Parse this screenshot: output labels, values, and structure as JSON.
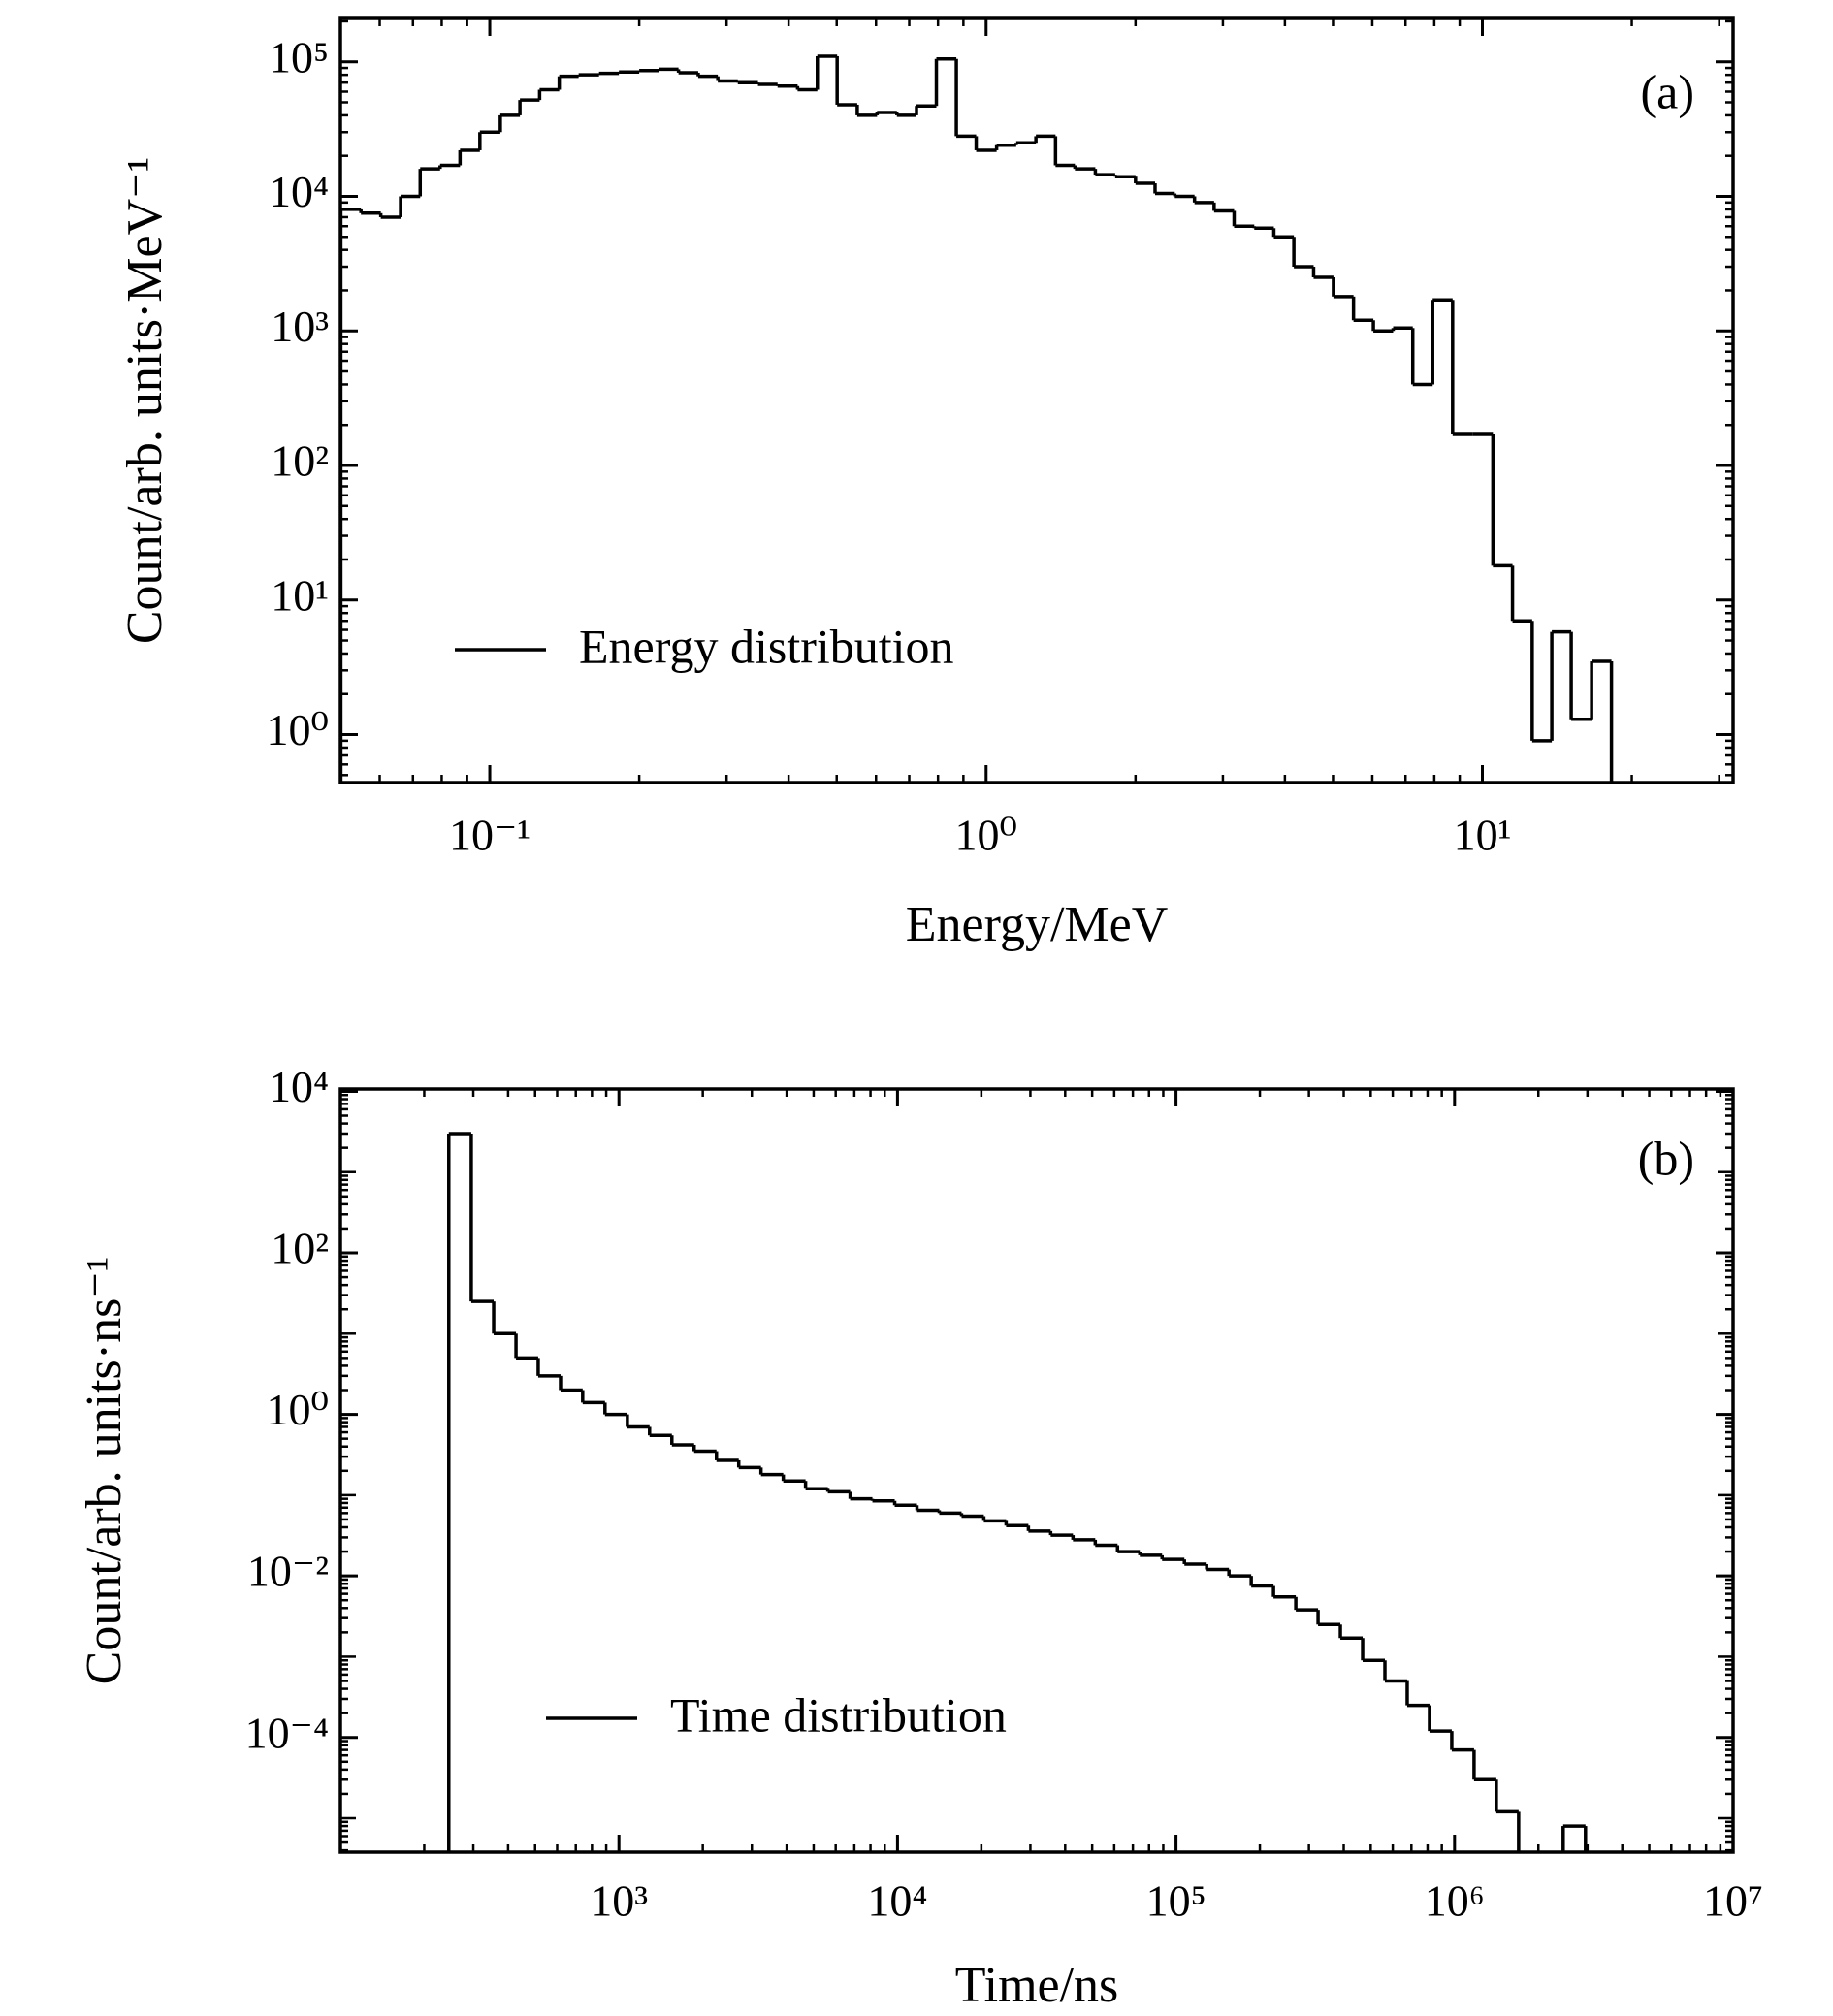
{
  "chart_data": [
    {
      "type": "histogram",
      "panel": "(a)",
      "xlabel": "Energy/MeV",
      "ylabel": "Count/arb. units·MeV⁻¹",
      "xscale": "log",
      "yscale": "log",
      "xlim": [
        0.05,
        32
      ],
      "ylim": [
        0.44,
        210000
      ],
      "xticks": [
        {
          "value": 0.1,
          "label": "10⁻¹"
        },
        {
          "value": 1,
          "label": "10⁰"
        },
        {
          "value": 10,
          "label": "10¹"
        }
      ],
      "yticks": [
        {
          "value": 1,
          "label": "10⁰"
        },
        {
          "value": 10,
          "label": "10¹"
        },
        {
          "value": 100,
          "label": "10²"
        },
        {
          "value": 1000,
          "label": "10³"
        },
        {
          "value": 10000,
          "label": "10⁴"
        },
        {
          "value": 100000,
          "label": "10⁵"
        }
      ],
      "legend": "lower left",
      "bins": [
        0.0501,
        0.055,
        0.0603,
        0.0661,
        0.0724,
        0.0794,
        0.0871,
        0.0955,
        0.105,
        0.115,
        0.126,
        0.138,
        0.151,
        0.166,
        0.182,
        0.2,
        0.219,
        0.24,
        0.263,
        0.288,
        0.316,
        0.347,
        0.38,
        0.417,
        0.457,
        0.501,
        0.55,
        0.603,
        0.661,
        0.724,
        0.794,
        0.871,
        0.955,
        1.05,
        1.15,
        1.26,
        1.38,
        1.51,
        1.66,
        1.82,
        2.0,
        2.19,
        2.4,
        2.63,
        2.88,
        3.16,
        3.47,
        3.8,
        4.17,
        4.57,
        5.01,
        5.5,
        6.03,
        6.61,
        7.24,
        7.94,
        8.71,
        9.55,
        10.5,
        11.5,
        12.6,
        13.8,
        15.1,
        16.6,
        18.2
      ],
      "series": [
        {
          "name": "Energy distribution",
          "color": "#000000",
          "values": [
            8000,
            7500,
            7000,
            10000,
            16000,
            17000,
            22000,
            30000,
            40000,
            52000,
            62000,
            78000,
            80000,
            82000,
            84000,
            86000,
            88000,
            83000,
            78000,
            72000,
            70000,
            68000,
            66000,
            62000,
            110000,
            48000,
            40000,
            42000,
            40000,
            47000,
            105000,
            28000,
            22000,
            24000,
            25000,
            28000,
            17000,
            16000,
            14500,
            14000,
            12500,
            10500,
            10000,
            9000,
            7800,
            6000,
            5800,
            5000,
            3000,
            2500,
            1800,
            1200,
            1000,
            1050,
            400,
            1700,
            170,
            170,
            18,
            7,
            0.9,
            5.8,
            1.3,
            3.5
          ]
        }
      ]
    },
    {
      "type": "histogram",
      "panel": "(b)",
      "xlabel": "Time/ns",
      "ylabel": "Count/arb. units·ns⁻¹",
      "xscale": "log",
      "yscale": "log",
      "xlim": [
        100,
        10000000
      ],
      "ylim": [
        3.8e-06,
        10700
      ],
      "xticks": [
        {
          "value": 1000,
          "label": "10³"
        },
        {
          "value": 10000,
          "label": "10⁴"
        },
        {
          "value": 100000,
          "label": "10⁵"
        },
        {
          "value": 1000000,
          "label": "10⁶"
        },
        {
          "value": 10000000,
          "label": "10⁷"
        }
      ],
      "yticks": [
        {
          "value": 0.0001,
          "label": "10⁻⁴"
        },
        {
          "value": 0.01,
          "label": "10⁻²"
        },
        {
          "value": 1,
          "label": "10⁰"
        },
        {
          "value": 100,
          "label": "10²"
        },
        {
          "value": 10000,
          "label": "10⁴"
        }
      ],
      "legend": "lower left",
      "bins": [
        245,
        295,
        355,
        427,
        513,
        617,
        741,
        891,
        1072,
        1288,
        1549,
        1862,
        2239,
        2692,
        3236,
        3890,
        4677,
        5623,
        6761,
        8128,
        9772,
        11749,
        14125,
        16982,
        20417,
        24547,
        29512,
        35481,
        42658,
        51286,
        61660,
        74131,
        89125,
        107152,
        128825,
        154882,
        186209,
        223872,
        269153,
        323594,
        389045,
        467735,
        562341,
        676083,
        812831,
        977237,
        1174898,
        1412538,
        1698244,
        2041738,
        2454709,
        2951209
      ],
      "series": [
        {
          "name": "Time distribution",
          "color": "#000000",
          "values": [
            3000,
            25,
            10,
            5,
            3,
            2,
            1.4,
            1.0,
            0.7,
            0.55,
            0.42,
            0.35,
            0.27,
            0.22,
            0.18,
            0.15,
            0.12,
            0.11,
            0.09,
            0.085,
            0.075,
            0.065,
            0.06,
            0.055,
            0.048,
            0.042,
            0.036,
            0.032,
            0.028,
            0.024,
            0.02,
            0.018,
            0.016,
            0.014,
            0.012,
            0.01,
            0.0075,
            0.0055,
            0.0038,
            0.0025,
            0.0017,
            0.0009,
            0.0005,
            0.00025,
            0.00012,
            7e-05,
            3e-05,
            1.2e-05,
            null,
            null,
            8e-06
          ]
        }
      ]
    }
  ]
}
